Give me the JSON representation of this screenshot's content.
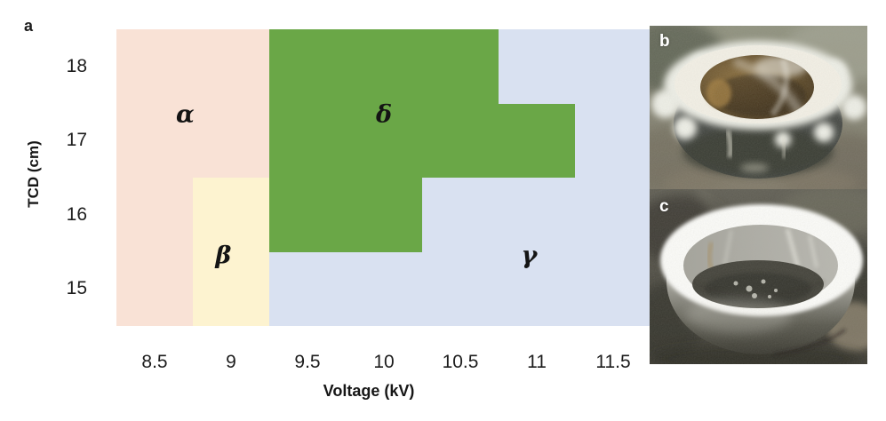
{
  "figure": {
    "panel_a_label": "a"
  },
  "chart_data": {
    "type": "heatmap",
    "xlabel": "Voltage (kV)",
    "ylabel": "TCD (cm)",
    "x_ticks": [
      8.5,
      9,
      9.5,
      10,
      10.5,
      11,
      11.5
    ],
    "y_ticks": [
      18,
      17,
      16,
      15
    ],
    "x_range": [
      8.25,
      11.75
    ],
    "y_range": [
      14.5,
      18.5
    ],
    "cell_size": {
      "v": 0.5,
      "t": 1
    },
    "grid": false,
    "legend_position": "none",
    "regions": [
      {
        "name": "alpha",
        "label": "α",
        "color": "#f9e2d6",
        "cells": [
          [
            8.5,
            18
          ],
          [
            9,
            18
          ],
          [
            8.5,
            17
          ],
          [
            9,
            17
          ],
          [
            8.5,
            16
          ],
          [
            8.5,
            15
          ]
        ],
        "label_pos": {
          "v": 8.7,
          "t": 17.35
        }
      },
      {
        "name": "beta",
        "label": "β",
        "color": "#fdf3d0",
        "cells": [
          [
            9,
            16
          ],
          [
            9,
            15
          ]
        ],
        "label_pos": {
          "v": 8.95,
          "t": 15.45
        }
      },
      {
        "name": "delta",
        "label": "δ",
        "color": "#6aa747",
        "cells": [
          [
            9.5,
            18
          ],
          [
            10,
            18
          ],
          [
            10.5,
            18
          ],
          [
            9.5,
            17
          ],
          [
            10,
            17
          ],
          [
            10.5,
            17
          ],
          [
            11,
            17
          ],
          [
            9.5,
            16
          ],
          [
            10,
            16
          ]
        ],
        "label_pos": {
          "v": 10.0,
          "t": 17.35
        }
      },
      {
        "name": "gamma",
        "label": "γ",
        "color": "#d9e1f1",
        "cells": [
          [
            11,
            18
          ],
          [
            11.5,
            18
          ],
          [
            11.5,
            17
          ],
          [
            10.5,
            16
          ],
          [
            11,
            16
          ],
          [
            11.5,
            16
          ],
          [
            9.5,
            15
          ],
          [
            10,
            15
          ],
          [
            10.5,
            15
          ],
          [
            11,
            15
          ],
          [
            11.5,
            15
          ]
        ],
        "label_pos": {
          "v": 10.95,
          "t": 15.45
        }
      }
    ]
  },
  "photos": {
    "b": {
      "label": "b",
      "alt": "Ring collector covered with white fibrous deposit"
    },
    "c": {
      "label": "c",
      "alt": "Ring collector with smooth bright white coating"
    }
  }
}
